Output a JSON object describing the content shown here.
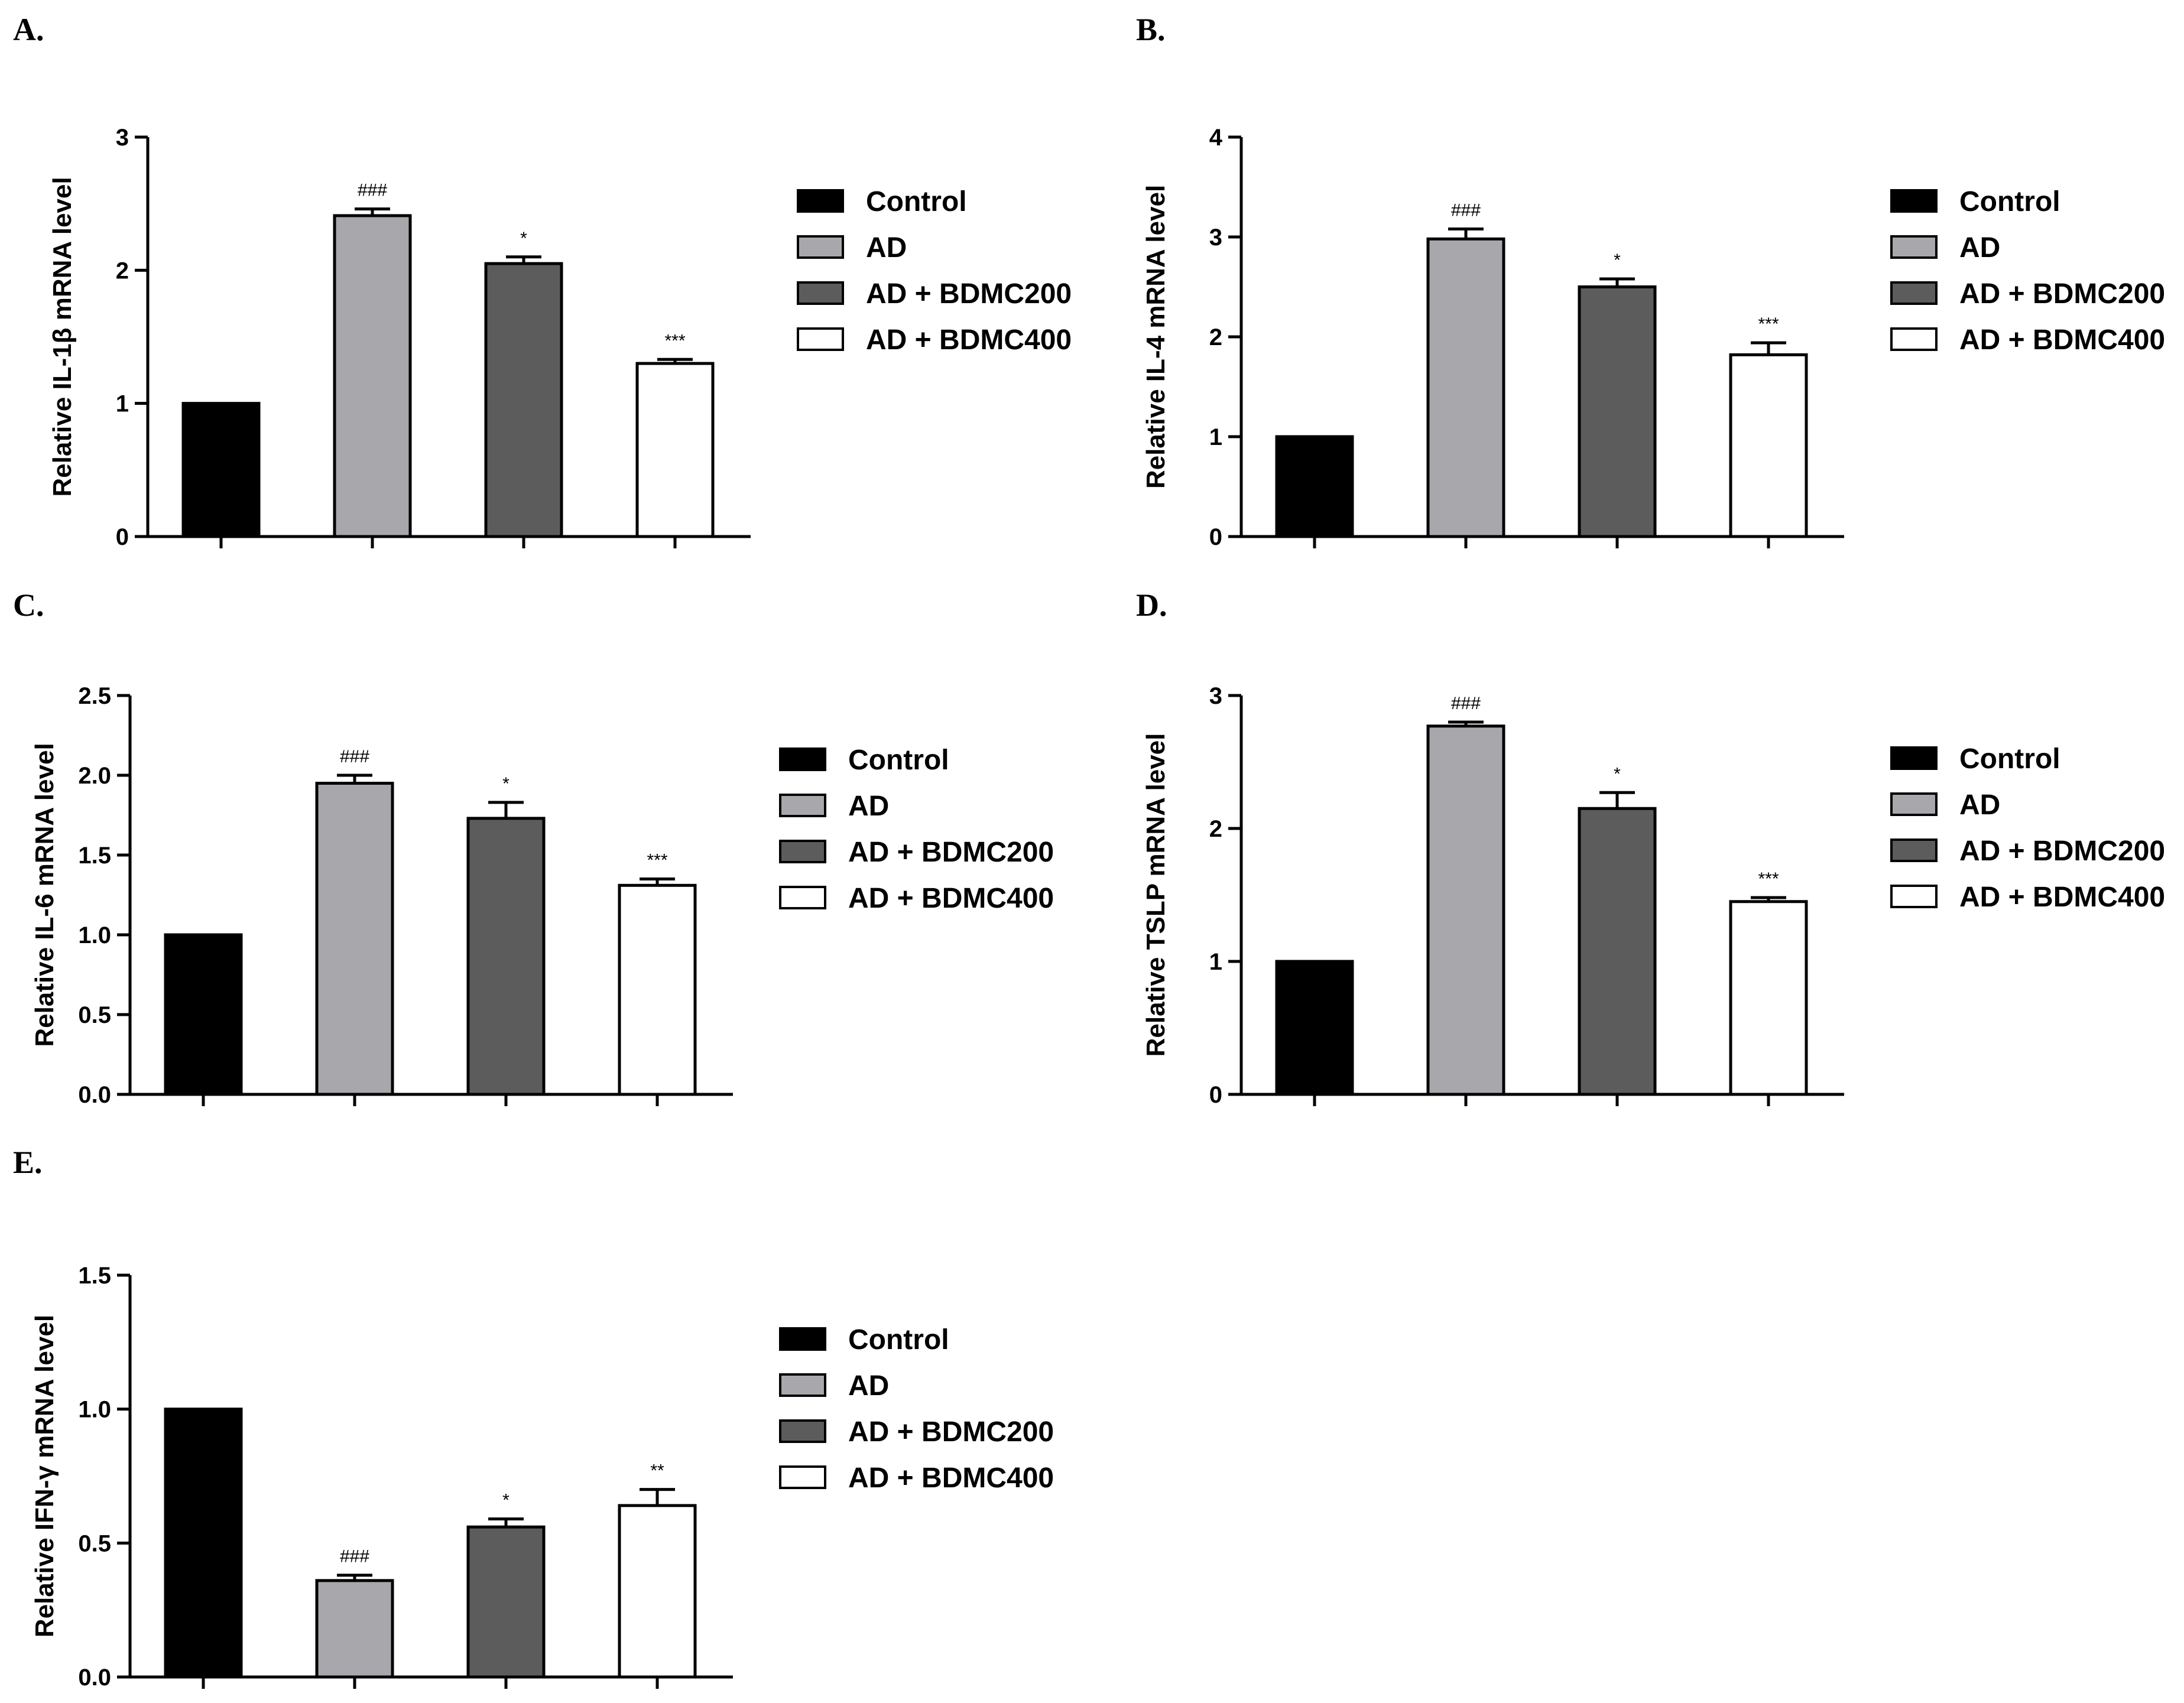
{
  "chart_data": [
    {
      "panel": "A.",
      "type": "bar",
      "ylabel": "Relative IL-1β mRNA level",
      "ylim": [
        0,
        3
      ],
      "yticks": [
        "0",
        "1",
        "2",
        "3"
      ],
      "categories": [
        "Control",
        "AD",
        "AD + BDMC200",
        "AD + BDMC400"
      ],
      "values": [
        1.0,
        2.41,
        2.05,
        1.3
      ],
      "errors": [
        0,
        0.05,
        0.05,
        0.03
      ],
      "annotations": [
        "",
        "###",
        "*",
        "***"
      ]
    },
    {
      "panel": "B.",
      "type": "bar",
      "ylabel": "Relative IL-4 mRNA level",
      "ylim": [
        0,
        4
      ],
      "yticks": [
        "0",
        "1",
        "2",
        "3",
        "4"
      ],
      "categories": [
        "Control",
        "AD",
        "AD + BDMC200",
        "AD + BDMC400"
      ],
      "values": [
        1.0,
        2.98,
        2.5,
        1.82
      ],
      "errors": [
        0,
        0.1,
        0.08,
        0.12
      ],
      "annotations": [
        "",
        "###",
        "*",
        "***"
      ]
    },
    {
      "panel": "C.",
      "type": "bar",
      "ylabel": "Relative IL-6 mRNA level",
      "ylim": [
        0,
        2.5
      ],
      "yticks": [
        "0.0",
        "0.5",
        "1.0",
        "1.5",
        "2.0",
        "2.5"
      ],
      "categories": [
        "Control",
        "AD",
        "AD + BDMC200",
        "AD + BDMC400"
      ],
      "values": [
        1.0,
        1.95,
        1.73,
        1.31
      ],
      "errors": [
        0,
        0.05,
        0.1,
        0.04
      ],
      "annotations": [
        "",
        "###",
        "*",
        "***"
      ]
    },
    {
      "panel": "D.",
      "type": "bar",
      "ylabel": "Relative TSLP mRNA level",
      "ylim": [
        0,
        3
      ],
      "yticks": [
        "0",
        "1",
        "2",
        "3"
      ],
      "categories": [
        "Control",
        "AD",
        "AD + BDMC200",
        "AD + BDMC400"
      ],
      "values": [
        1.0,
        2.77,
        2.15,
        1.45
      ],
      "errors": [
        0,
        0.03,
        0.12,
        0.03
      ],
      "annotations": [
        "",
        "###",
        "*",
        "***"
      ]
    },
    {
      "panel": "E.",
      "type": "bar",
      "ylabel": "Relative IFN-γ mRNA level",
      "ylim": [
        0,
        1.5
      ],
      "yticks": [
        "0.0",
        "0.5",
        "1.0",
        "1.5"
      ],
      "categories": [
        "Control",
        "AD",
        "AD + BDMC200",
        "AD + BDMC400"
      ],
      "values": [
        1.0,
        0.36,
        0.56,
        0.64
      ],
      "errors": [
        0,
        0.02,
        0.03,
        0.06
      ],
      "annotations": [
        "###",
        "*",
        "**"
      ],
      "annotation_bars": [
        1,
        2,
        3
      ]
    }
  ],
  "legend": {
    "items": [
      "Control",
      "AD",
      "AD + BDMC200",
      "AD + BDMC400"
    ],
    "colors": [
      "#000000",
      "#a8a8ac",
      "#5c5c5c",
      "#ffffff"
    ]
  }
}
